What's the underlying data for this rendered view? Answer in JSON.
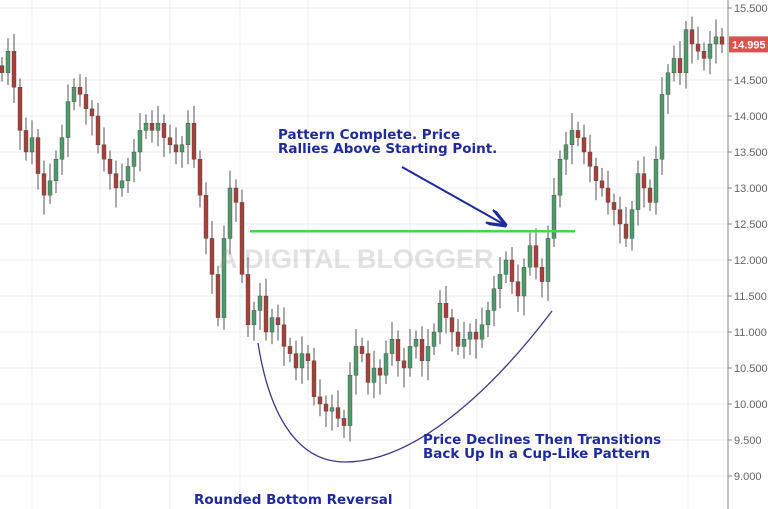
{
  "chart_data": {
    "type": "candlestick",
    "title": "",
    "xlabel": "",
    "ylabel": "",
    "ylim": [
      8.8,
      15.6
    ],
    "yticks": [
      "9.000",
      "9.500",
      "10.000",
      "10.500",
      "11.000",
      "11.500",
      "12.000",
      "12.500",
      "13.000",
      "13.500",
      "14.000",
      "14.500",
      "15.000",
      "15.500"
    ],
    "ytick_values": [
      9.0,
      9.5,
      10.0,
      10.5,
      11.0,
      11.5,
      12.0,
      12.5,
      13.0,
      13.5,
      14.0,
      14.5,
      15.0,
      15.5
    ],
    "grid": true,
    "last_price": 14.995,
    "last_price_label": "14.995",
    "colors": {
      "up": "#4f9a6b",
      "down": "#a8403a",
      "last_price_bg": "#d9534f",
      "annotation": "#1f2a9c",
      "resistance_line": "#4cd44c"
    },
    "closes": [
      14.6,
      14.9,
      14.4,
      13.8,
      13.5,
      13.7,
      13.2,
      12.9,
      13.1,
      13.4,
      13.7,
      14.2,
      14.4,
      14.3,
      14.1,
      14.0,
      13.6,
      13.4,
      13.2,
      13.0,
      13.1,
      13.3,
      13.5,
      13.8,
      13.9,
      13.8,
      13.9,
      13.7,
      13.6,
      13.5,
      13.6,
      13.9,
      13.4,
      12.9,
      12.3,
      11.8,
      11.2,
      12.3,
      13.0,
      12.8,
      11.8,
      11.1,
      11.3,
      11.5,
      11.0,
      11.2,
      11.1,
      10.8,
      10.7,
      10.5,
      10.7,
      10.6,
      10.1,
      10.0,
      9.9,
      9.95,
      9.8,
      9.7,
      10.4,
      10.8,
      10.7,
      10.3,
      10.5,
      10.4,
      10.7,
      10.9,
      10.6,
      10.5,
      10.8,
      10.9,
      10.6,
      10.8,
      11.0,
      11.4,
      11.2,
      11.0,
      10.8,
      10.9,
      11.0,
      10.9,
      11.1,
      11.3,
      11.6,
      11.8,
      12.0,
      11.7,
      11.5,
      11.9,
      12.2,
      11.9,
      11.7,
      12.3,
      12.9,
      13.4,
      13.6,
      13.8,
      13.7,
      13.5,
      13.3,
      13.1,
      13.0,
      12.8,
      12.7,
      12.5,
      12.3,
      12.7,
      13.2,
      13.0,
      12.8,
      13.4,
      14.3,
      14.6,
      14.8,
      14.6,
      15.2,
      15.0,
      14.9,
      14.8,
      15.0,
      15.1,
      14.995
    ],
    "resistance_level": 12.4,
    "annotations": {
      "pattern_complete_line1": "Pattern Complete. Price",
      "pattern_complete_line2": "Rallies Above Starting Point.",
      "cup_line1": "Price Declines Then Transitions",
      "cup_line2": "Back Up In a Cup-Like Pattern",
      "caption": "Rounded Bottom Reversal"
    },
    "watermark": "A DIGITAL BLOGGER"
  }
}
